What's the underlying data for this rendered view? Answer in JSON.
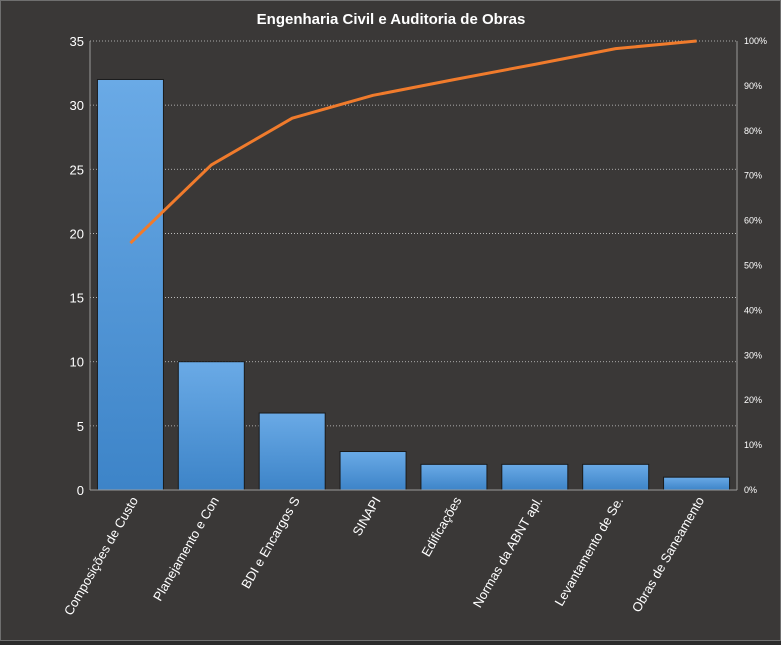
{
  "chart_data": {
    "type": "bar",
    "title": "Engenharia Civil e Auditoria de Obras",
    "categories": [
      "Composições de Custo",
      "Planejamento e Con",
      "BDI e Encargos S",
      "SINAPI",
      "Edificações",
      "Normas da ABNT apl.",
      "Levantamento de Se.",
      "Obras de Saneamento"
    ],
    "series": [
      {
        "values": [
          32,
          10,
          6,
          3,
          2,
          2,
          2,
          1
        ]
      },
      {
        "type": "line",
        "axis": "secondary",
        "values": [
          55,
          72.4,
          82.8,
          87.9,
          91.4,
          94.8,
          98.3,
          100
        ]
      }
    ],
    "ylim": [
      0,
      35
    ],
    "yticks": [
      "0",
      "5",
      "10",
      "15",
      "20",
      "25",
      "30",
      "35"
    ],
    "y2lim": [
      0,
      100
    ],
    "y2ticks": [
      "0%",
      "10%",
      "20%",
      "30%",
      "40%",
      "50%",
      "60%",
      "70%",
      "80%",
      "90%",
      "100%"
    ],
    "grid": true,
    "legend": "none"
  },
  "colors": {
    "bar_top": "#6aaae6",
    "bar_bottom": "#3d84c8",
    "line": "#f07b2c",
    "text": "#ffffff",
    "grid": "#d0d0d0"
  }
}
